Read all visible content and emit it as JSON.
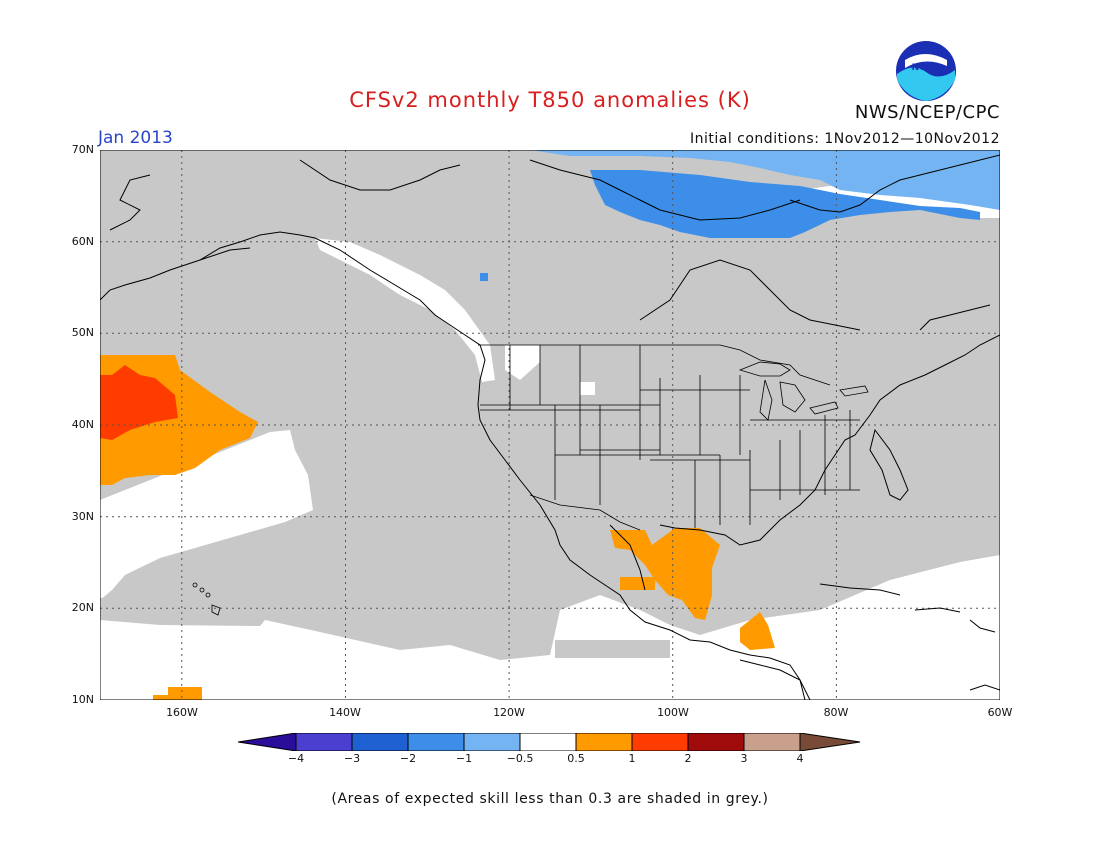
{
  "title": "CFSv2 monthly T850 anomalies (K)",
  "agency": "NWS/NCEP/CPC",
  "logo_text": "NOAA",
  "month": "Jan 2013",
  "initial_conditions": "Initial conditions: 1Nov2012—10Nov2012",
  "caption": "(Areas of expected skill less than 0.3 are shaded in grey.)",
  "axes": {
    "lat_labels": [
      "70N",
      "60N",
      "50N",
      "40N",
      "30N",
      "20N",
      "10N"
    ],
    "lon_labels": [
      "160W",
      "140W",
      "120W",
      "100W",
      "80W",
      "60W"
    ]
  },
  "colorbar": {
    "labels": [
      "−4",
      "−3",
      "−2",
      "−1",
      "−0.5",
      "0.5",
      "1",
      "2",
      "3",
      "4"
    ],
    "colors": [
      "#2a0e9a",
      "#4b3fd0",
      "#1f60d2",
      "#3c8ee8",
      "#74b4f2",
      "#ffffff",
      "#ff9a00",
      "#ff3c00",
      "#a00c0c",
      "#c8a08c",
      "#7a4a38"
    ]
  },
  "colors": {
    "land_grey": "#c8c8c8",
    "low_skill_grey": "#c8c8c8",
    "coast": "#000000"
  }
}
